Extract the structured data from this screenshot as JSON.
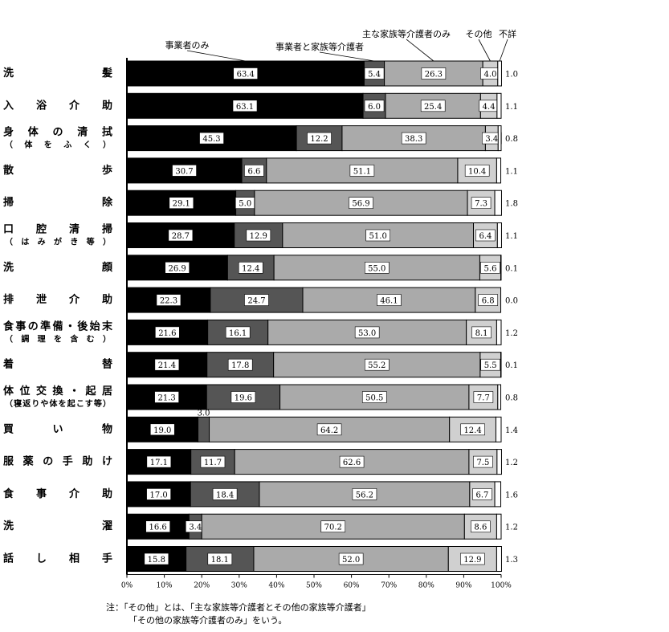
{
  "chart_data": {
    "type": "bar",
    "stacked": true,
    "orientation": "horizontal",
    "categories": [
      "洗　　　　　　　　髪",
      "入　浴　介　助",
      "身　体　の　清　拭",
      "散　　　　　　　　歩",
      "掃　　　　　　　　除",
      "口　腔　清　掃",
      "洗　　　　　　　　顔",
      "排　泄　介　助",
      "食事の準備・後始末",
      "着　　　　　　　　替",
      "体位交換・起居",
      "買　　　い　　　物",
      "服 薬 の 手 助 け",
      "食　事　介　助",
      "洗　　　　　　　　濯",
      "話　し　相　手"
    ],
    "category_sublabels": [
      "",
      "",
      "（ 体 を ふ く ）",
      "",
      "",
      "（ は み が き 等 ）",
      "",
      "",
      "（ 調 理 を 含 む ）",
      "",
      "（寝返りや体を起こす等）",
      "",
      "",
      "",
      "",
      ""
    ],
    "series": [
      {
        "name": "事業者のみ",
        "color": "#000000",
        "values": [
          63.4,
          63.1,
          45.3,
          30.7,
          29.1,
          28.7,
          26.9,
          22.3,
          21.6,
          21.4,
          21.3,
          19.0,
          17.1,
          17.0,
          16.6,
          15.8
        ]
      },
      {
        "name": "事業者と家族等介護者",
        "color": "#555555",
        "values": [
          5.4,
          6.0,
          12.2,
          6.6,
          5.0,
          12.9,
          12.4,
          24.7,
          16.1,
          17.8,
          19.6,
          3.0,
          11.7,
          18.4,
          3.4,
          18.1
        ]
      },
      {
        "name": "主な家族等介護者のみ",
        "color": "#aaaaaa",
        "values": [
          26.3,
          25.4,
          38.3,
          51.1,
          56.9,
          51.0,
          55.0,
          46.1,
          53.0,
          55.2,
          50.5,
          64.2,
          62.6,
          56.2,
          70.2,
          52.0
        ]
      },
      {
        "name": "その他",
        "color": "#d0d0d0",
        "values": [
          4.0,
          4.4,
          3.4,
          10.4,
          7.3,
          6.4,
          5.6,
          6.8,
          8.1,
          5.5,
          7.7,
          12.4,
          7.5,
          6.7,
          8.6,
          12.9
        ]
      },
      {
        "name": "不詳",
        "color": "#ffffff",
        "values": [
          1.0,
          1.1,
          0.8,
          1.1,
          1.8,
          1.1,
          0.1,
          0.0,
          1.2,
          0.1,
          0.8,
          1.4,
          1.2,
          1.6,
          1.2,
          1.3
        ]
      }
    ],
    "xlim": [
      0,
      100
    ],
    "xticks": [
      "0%",
      "10%",
      "20%",
      "30%",
      "40%",
      "50%",
      "60%",
      "70%",
      "80%",
      "90%",
      "100%"
    ]
  },
  "notes": {
    "line1": "注：「その他」とは、「主な家族等介護者とその他の家族等介護者」",
    "line2": "「その他の家族等介護者のみ」をいう。"
  }
}
